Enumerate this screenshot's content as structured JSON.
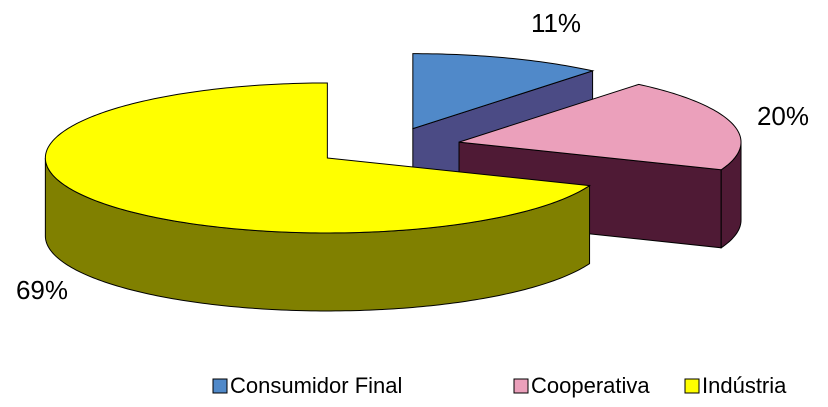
{
  "chart_data": {
    "type": "pie",
    "categories": [
      "Consumidor Final",
      "Cooperativa",
      "Indústria"
    ],
    "values": [
      11,
      20,
      69
    ],
    "value_labels": [
      "11%",
      "20%",
      "69%"
    ],
    "colors": [
      "#5089c9",
      "#eba0bb",
      "#ffff00"
    ],
    "side_colors": [
      "#4b4b85",
      "#4f1a35",
      "#808000"
    ],
    "three_d": true,
    "exploded": true
  }
}
